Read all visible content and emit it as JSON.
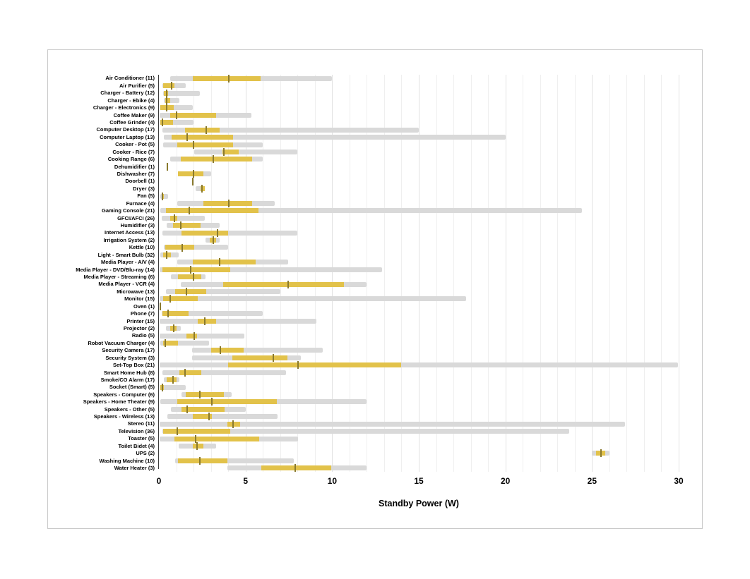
{
  "chart_data": {
    "type": "boxplot-horizontal",
    "title": "",
    "xlabel": "Standby Power (W)",
    "ylabel": "",
    "xlim": [
      0,
      30
    ],
    "xticks": [
      0,
      5,
      10,
      15,
      20,
      25,
      30
    ],
    "grid": "vertical, minor every 1 W, major every 5 W",
    "legend": "none",
    "colors": {
      "range_bar": "#d9d9d9",
      "iqr_box": "#e2c24a",
      "median_tick": "#8a7a2e",
      "gridline_minor": "#efefef",
      "gridline_major": "#e2e2e2",
      "axis_spine": "#3c3c3c",
      "figure_border": "#c9c9c9",
      "background": "#ffffff"
    },
    "series_meaning": {
      "gray_bar": "full min–max range of observations",
      "yellow_box": "interquartile range (q1–q3)",
      "dark_tick": "median"
    },
    "devices": [
      {
        "label": "Air Conditioner (11)",
        "min": 0.65,
        "q1": 1.95,
        "median": 4.05,
        "q3": 5.85,
        "max": 10.0
      },
      {
        "label": "Air Purifier (5)",
        "min": 0.2,
        "q1": 0.25,
        "median": 0.75,
        "q3": 0.9,
        "max": 1.55
      },
      {
        "label": "Charger - Battery (12)",
        "min": 0.25,
        "q1": 0.3,
        "median": 0.45,
        "q3": 0.55,
        "max": 2.35
      },
      {
        "label": "Charger - Ebike (4)",
        "min": 0.3,
        "q1": 0.35,
        "median": 0.45,
        "q3": 0.65,
        "max": 1.2
      },
      {
        "label": "Charger - Electronics (9)",
        "min": 0.05,
        "q1": 0.1,
        "median": 0.45,
        "q3": 0.85,
        "max": 1.95
      },
      {
        "label": "Coffee Maker (9)",
        "min": 0.05,
        "q1": 0.65,
        "median": 1.0,
        "q3": 3.3,
        "max": 5.35
      },
      {
        "label": "Coffee Grinder (4)",
        "min": 0.05,
        "q1": 0.1,
        "median": 0.2,
        "q3": 0.8,
        "max": 2.0
      },
      {
        "label": "Computer Desktop (17)",
        "min": 0.2,
        "q1": 1.5,
        "median": 2.75,
        "q3": 3.5,
        "max": 15.0
      },
      {
        "label": "Computer Laptop (13)",
        "min": 0.3,
        "q1": 0.75,
        "median": 1.65,
        "q3": 4.3,
        "max": 20.0
      },
      {
        "label": "Cooker - Pot (5)",
        "min": 0.25,
        "q1": 1.05,
        "median": 2.0,
        "q3": 4.3,
        "max": 6.0
      },
      {
        "label": "Cooker - Rice (7)",
        "min": 2.05,
        "q1": 3.65,
        "median": 3.75,
        "q3": 4.6,
        "max": 8.0
      },
      {
        "label": "Cooking Range (6)",
        "min": 0.65,
        "q1": 1.25,
        "median": 3.15,
        "q3": 5.4,
        "max": 6.0
      },
      {
        "label": "Dehumidifier (1)",
        "min": 0.5,
        "q1": 0.5,
        "median": 0.5,
        "q3": 0.5,
        "max": 0.5
      },
      {
        "label": "Dishwasher (7)",
        "min": 1.1,
        "q1": 1.1,
        "median": 2.0,
        "q3": 2.55,
        "max": 3.0
      },
      {
        "label": "Doorbell (1)",
        "min": 1.95,
        "q1": 1.95,
        "median": 1.95,
        "q3": 1.95,
        "max": 1.95
      },
      {
        "label": "Dryer (3)",
        "min": 2.1,
        "q1": 2.4,
        "median": 2.5,
        "q3": 2.65,
        "max": 2.65
      },
      {
        "label": "Fan (5)",
        "min": 0.1,
        "q1": 0.15,
        "median": 0.2,
        "q3": 0.3,
        "max": 0.55
      },
      {
        "label": "Furnace (4)",
        "min": 1.05,
        "q1": 2.55,
        "median": 4.05,
        "q3": 5.4,
        "max": 6.7
      },
      {
        "label": "Gaming Console (21)",
        "min": 0.1,
        "q1": 0.4,
        "median": 1.75,
        "q3": 5.75,
        "max": 24.4
      },
      {
        "label": "GFCI/AFCI (26)",
        "min": 0.15,
        "q1": 0.65,
        "median": 0.9,
        "q3": 1.05,
        "max": 2.65
      },
      {
        "label": "Humidifier (3)",
        "min": 0.45,
        "q1": 0.8,
        "median": 1.25,
        "q3": 2.4,
        "max": 3.5
      },
      {
        "label": "Internet Access (13)",
        "min": 0.2,
        "q1": 1.3,
        "median": 3.4,
        "q3": 4.0,
        "max": 8.0
      },
      {
        "label": "Irrigation System (2)",
        "min": 2.7,
        "q1": 2.95,
        "median": 3.15,
        "q3": 3.3,
        "max": 3.5
      },
      {
        "label": "Kettle (10)",
        "min": 0.3,
        "q1": 0.35,
        "median": 1.35,
        "q3": 2.05,
        "max": 4.0
      },
      {
        "label": "Light - Smart Bulb (32)",
        "min": 0.1,
        "q1": 0.25,
        "median": 0.45,
        "q3": 0.7,
        "max": 1.15
      },
      {
        "label": "Media Player - A/V (4)",
        "min": 1.05,
        "q1": 1.95,
        "median": 3.5,
        "q3": 5.6,
        "max": 7.45
      },
      {
        "label": "Media Player - DVD/Blu-ray (14)",
        "min": 0.05,
        "q1": 0.2,
        "median": 1.85,
        "q3": 4.1,
        "max": 12.9
      },
      {
        "label": "Media Player - Streaming (6)",
        "min": 0.7,
        "q1": 1.1,
        "median": 2.0,
        "q3": 2.45,
        "max": 2.7
      },
      {
        "label": "Media Player - VCR (4)",
        "min": 1.25,
        "q1": 3.7,
        "median": 7.45,
        "q3": 10.7,
        "max": 12.0
      },
      {
        "label": "Microwave (13)",
        "min": 0.4,
        "q1": 0.95,
        "median": 1.6,
        "q3": 2.75,
        "max": 7.0
      },
      {
        "label": "Monitor (15)",
        "min": 0.05,
        "q1": 0.25,
        "median": 0.65,
        "q3": 2.25,
        "max": 17.75
      },
      {
        "label": "Oven (1)",
        "min": 0.1,
        "q1": 0.1,
        "median": 0.1,
        "q3": 0.1,
        "max": 0.1
      },
      {
        "label": "Phone (7)",
        "min": 0.15,
        "q1": 0.2,
        "median": 0.55,
        "q3": 1.7,
        "max": 6.0
      },
      {
        "label": "Printer (15)",
        "min": 0.05,
        "q1": 2.25,
        "median": 2.65,
        "q3": 3.3,
        "max": 9.1
      },
      {
        "label": "Projector (2)",
        "min": 0.4,
        "q1": 0.65,
        "median": 0.85,
        "q3": 1.0,
        "max": 1.25
      },
      {
        "label": "Radio (5)",
        "min": 0.05,
        "q1": 1.6,
        "median": 2.05,
        "q3": 2.2,
        "max": 4.95
      },
      {
        "label": "Robot Vacuum Charger (4)",
        "min": 0.1,
        "q1": 0.25,
        "median": 0.35,
        "q3": 1.1,
        "max": 2.9
      },
      {
        "label": "Security Camera (17)",
        "min": 1.9,
        "q1": 3.0,
        "median": 3.55,
        "q3": 4.9,
        "max": 9.45
      },
      {
        "label": "Security System (3)",
        "min": 1.9,
        "q1": 4.25,
        "median": 6.6,
        "q3": 7.4,
        "max": 8.2
      },
      {
        "label": "Set-Top Box (21)",
        "min": 0.05,
        "q1": 4.0,
        "median": 8.05,
        "q3": 14.0,
        "max": 29.95
      },
      {
        "label": "Smart Home Hub (8)",
        "min": 0.2,
        "q1": 1.2,
        "median": 1.5,
        "q3": 2.45,
        "max": 7.35
      },
      {
        "label": "Smoke/CO Alarm (17)",
        "min": 0.3,
        "q1": 0.45,
        "median": 0.8,
        "q3": 1.0,
        "max": 1.2
      },
      {
        "label": "Socket (Smart) (5)",
        "min": 0.05,
        "q1": 0.1,
        "median": 0.2,
        "q3": 0.3,
        "max": 1.55
      },
      {
        "label": "Speakers - Computer (6)",
        "min": 1.3,
        "q1": 1.55,
        "median": 2.35,
        "q3": 3.75,
        "max": 4.2
      },
      {
        "label": "Speakers - Home Theater (9)",
        "min": 0.1,
        "q1": 1.05,
        "median": 3.05,
        "q3": 6.8,
        "max": 12.0
      },
      {
        "label": "Speakers - Other (5)",
        "min": 0.7,
        "q1": 1.3,
        "median": 1.65,
        "q3": 3.8,
        "max": 5.0
      },
      {
        "label": "Speakers - Wireless (13)",
        "min": 0.5,
        "q1": 1.95,
        "median": 2.9,
        "q3": 3.05,
        "max": 6.85
      },
      {
        "label": "Stereo (11)",
        "min": 0.05,
        "q1": 3.95,
        "median": 4.3,
        "q3": 4.7,
        "max": 26.9
      },
      {
        "label": "Television (36)",
        "min": 0.2,
        "q1": 0.25,
        "median": 1.05,
        "q3": 4.1,
        "max": 23.7
      },
      {
        "label": "Toaster (5)",
        "min": 0.05,
        "q1": 0.9,
        "median": 2.1,
        "q3": 5.8,
        "max": 8.05
      },
      {
        "label": "Toilet Bidet (4)",
        "min": 1.15,
        "q1": 1.95,
        "median": 2.2,
        "q3": 2.55,
        "max": 3.3
      },
      {
        "label": "UPS (2)",
        "min": 25.0,
        "q1": 25.25,
        "median": 25.5,
        "q3": 25.75,
        "max": 26.0
      },
      {
        "label": "Washing Machine (10)",
        "min": 0.95,
        "q1": 1.1,
        "median": 2.35,
        "q3": 3.95,
        "max": 7.8
      },
      {
        "label": "Water Heater (3)",
        "min": 3.95,
        "q1": 5.9,
        "median": 7.85,
        "q3": 9.95,
        "max": 12.0
      }
    ]
  }
}
